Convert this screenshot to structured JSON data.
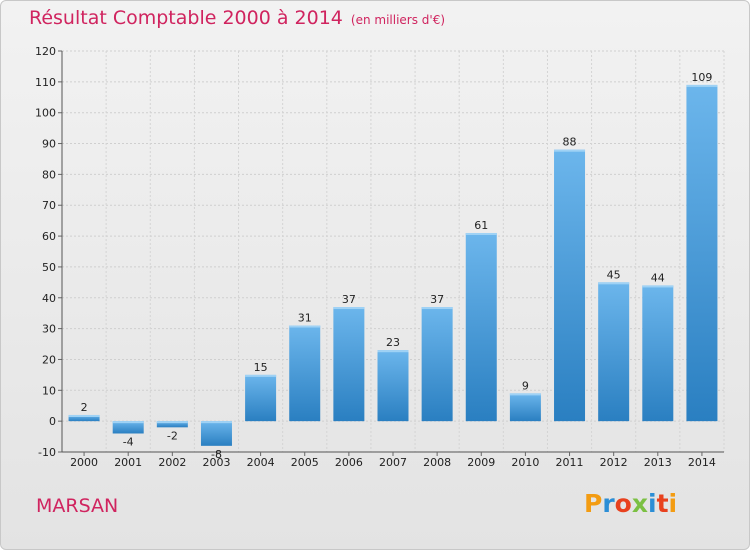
{
  "title": "Résultat Comptable 2000 à 2014",
  "subtitle": "(en milliers d'€)",
  "place": "MARSAN",
  "logo": "Proxiti",
  "colors": {
    "title": "#d0245f",
    "bar_light": "#6cb6ec",
    "bar_dark": "#2a7fc1",
    "background": "#eaeaea"
  },
  "chart_data": {
    "type": "bar",
    "title": "Résultat Comptable 2000 à 2014",
    "subtitle": "(en milliers d'€)",
    "categories": [
      "2000",
      "2001",
      "2002",
      "2003",
      "2004",
      "2005",
      "2006",
      "2007",
      "2008",
      "2009",
      "2010",
      "2011",
      "2012",
      "2013",
      "2014"
    ],
    "values": [
      2,
      -4,
      -2,
      -8,
      15,
      31,
      37,
      23,
      37,
      61,
      9,
      88,
      45,
      44,
      109
    ],
    "data_labels": [
      "2",
      "-4",
      "-2",
      "-8",
      "15",
      "31",
      "37",
      "23",
      "37",
      "61",
      "9",
      "88",
      "45",
      "44",
      "109"
    ],
    "ylim": [
      -10,
      120
    ],
    "yticks": [
      -10,
      0,
      10,
      20,
      30,
      40,
      50,
      60,
      70,
      80,
      90,
      100,
      110,
      120
    ],
    "grid": true
  }
}
